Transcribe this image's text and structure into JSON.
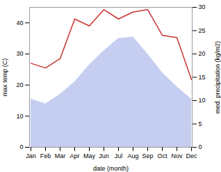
{
  "chart_data": {
    "type": "line",
    "xlabel": "date (month)",
    "ylabel": "max temp (C)",
    "y2label": "med. precipitation (kg/m2)",
    "categories": [
      "Jan",
      "Feb",
      "Mar",
      "Apr",
      "May",
      "Jun",
      "Jul",
      "Aug",
      "Sep",
      "Oct",
      "Nov",
      "Dec"
    ],
    "series": [
      {
        "type": "area",
        "color": "#c5cef0",
        "values": [
          15.5,
          14.0,
          17.0,
          21.0,
          26.5,
          31.0,
          35.0,
          35.5,
          30.0,
          24.0,
          19.5,
          15.5
        ]
      },
      {
        "type": "line",
        "color": "#cc3333",
        "axis": "y2",
        "values": [
          18.0,
          17.0,
          19.0,
          27.5,
          26.0,
          29.5,
          27.5,
          29.0,
          29.5,
          24.0,
          23.5,
          14.5
        ]
      }
    ],
    "ylim": [
      0,
      45
    ],
    "yticks": [
      0,
      10,
      20,
      30,
      40
    ],
    "y2lim": [
      0,
      30
    ],
    "y2ticks": [
      0,
      5,
      10,
      15,
      20,
      25,
      30
    ]
  }
}
